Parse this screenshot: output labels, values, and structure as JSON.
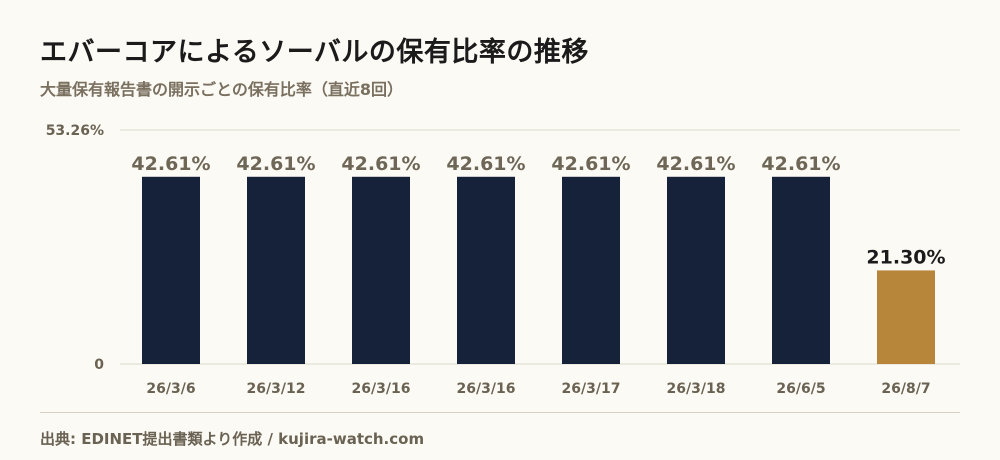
{
  "header": {
    "title": "エバーコアによるソーバルの保有比率の推移",
    "subtitle": "大量保有報告書の開示ごとの保有比率（直近8回）"
  },
  "footer": {
    "source": "出典: EDINET提出書類より作成 / kujira-watch.com"
  },
  "colors": {
    "bar_primary": "#16213a",
    "bar_highlight": "#b8863b",
    "value_label_muted": "#6e6656",
    "value_label_highlight": "#1b1b1b",
    "grid": "#ddd8ca",
    "axis_text": "#6a6252"
  },
  "chart_data": {
    "type": "bar",
    "categories": [
      "26/3/6",
      "26/3/12",
      "26/3/16",
      "26/3/16",
      "26/3/17",
      "26/3/18",
      "26/6/5",
      "26/8/7"
    ],
    "values": [
      42.61,
      42.61,
      42.61,
      42.61,
      42.61,
      42.61,
      42.61,
      21.3
    ],
    "value_labels": [
      "42.61%",
      "42.61%",
      "42.61%",
      "42.61%",
      "42.61%",
      "42.61%",
      "42.61%",
      "21.30%"
    ],
    "highlight_index": 7,
    "ylim": [
      0,
      53.26
    ],
    "yticks": [
      0,
      53.26
    ],
    "ytick_labels": [
      "0",
      "53.26%"
    ],
    "grid": true,
    "xlabel": "",
    "ylabel": ""
  }
}
